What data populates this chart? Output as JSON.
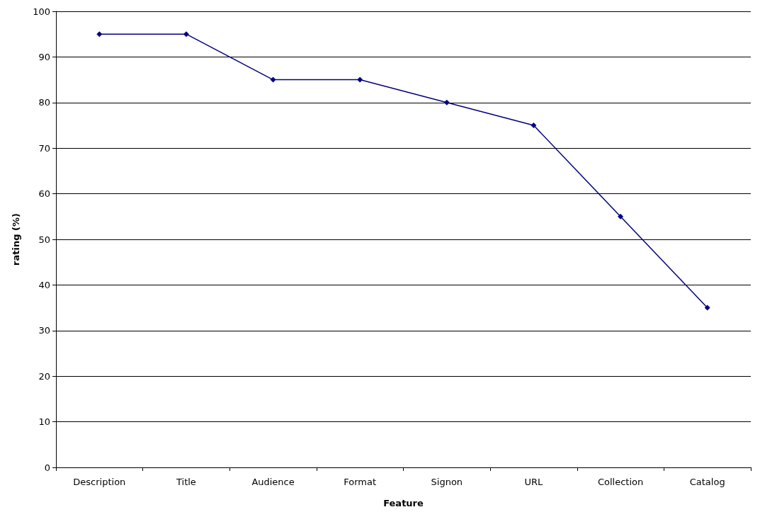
{
  "chart_data": {
    "type": "line",
    "xlabel": "Feature",
    "ylabel": "rating (%)",
    "categories": [
      "Description",
      "Title",
      "Audience",
      "Format",
      "Signon",
      "URL",
      "Collection",
      "Catalog"
    ],
    "series": [
      {
        "color": "#000080",
        "values": [
          95,
          95,
          85,
          85,
          80,
          75,
          55,
          35
        ]
      }
    ],
    "ylim": [
      0,
      100
    ],
    "yticks": [
      0,
      10,
      20,
      30,
      40,
      50,
      60,
      70,
      80,
      90,
      100
    ],
    "grid": "y",
    "marker": "diamond",
    "line_style": "solid"
  }
}
